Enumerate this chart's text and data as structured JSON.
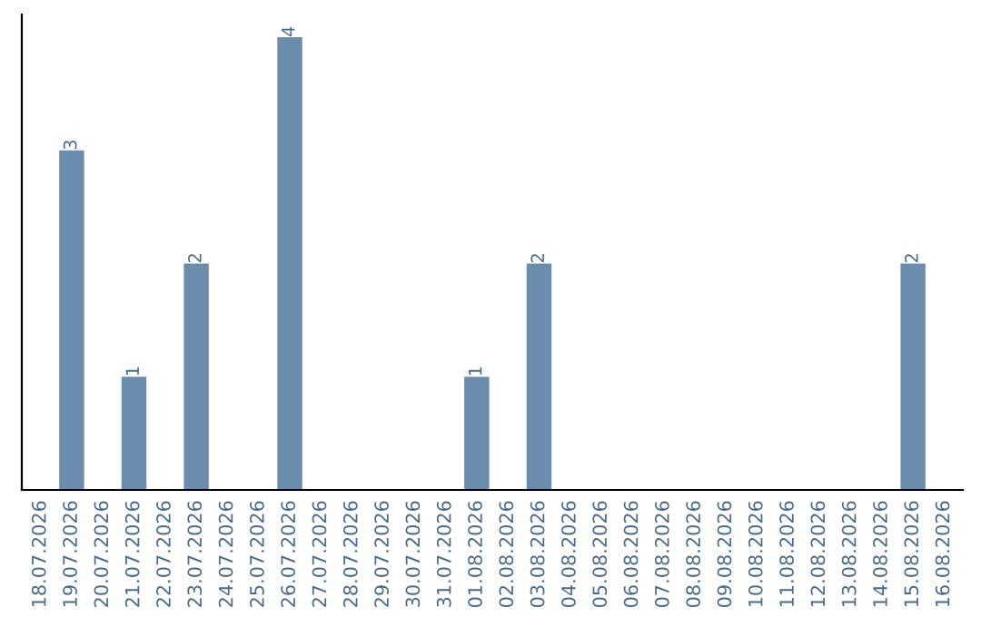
{
  "chart_data": {
    "type": "bar",
    "categories": [
      "18.07.2026",
      "19.07.2026",
      "20.07.2026",
      "21.07.2026",
      "22.07.2026",
      "23.07.2026",
      "24.07.2026",
      "25.07.2026",
      "26.07.2026",
      "27.07.2026",
      "28.07.2026",
      "29.07.2026",
      "30.07.2026",
      "31.07.2026",
      "01.08.2026",
      "02.08.2026",
      "03.08.2026",
      "04.08.2026",
      "05.08.2026",
      "06.08.2026",
      "07.08.2026",
      "08.08.2026",
      "09.08.2026",
      "10.08.2026",
      "11.08.2026",
      "12.08.2026",
      "13.08.2026",
      "14.08.2026",
      "15.08.2026",
      "16.08.2026"
    ],
    "values": [
      0,
      3,
      0,
      1,
      0,
      2,
      0,
      0,
      4,
      0,
      0,
      0,
      0,
      0,
      1,
      0,
      2,
      0,
      0,
      0,
      0,
      0,
      0,
      0,
      0,
      0,
      0,
      0,
      2,
      0
    ],
    "value_labels": [
      null,
      "3",
      null,
      "1",
      null,
      "2",
      null,
      null,
      "4",
      null,
      null,
      null,
      null,
      null,
      "1",
      null,
      "2",
      null,
      null,
      null,
      null,
      null,
      null,
      null,
      null,
      null,
      null,
      null,
      "2",
      null
    ],
    "color": "#6b8cac",
    "tick_labels": "x",
    "grid": false
  }
}
